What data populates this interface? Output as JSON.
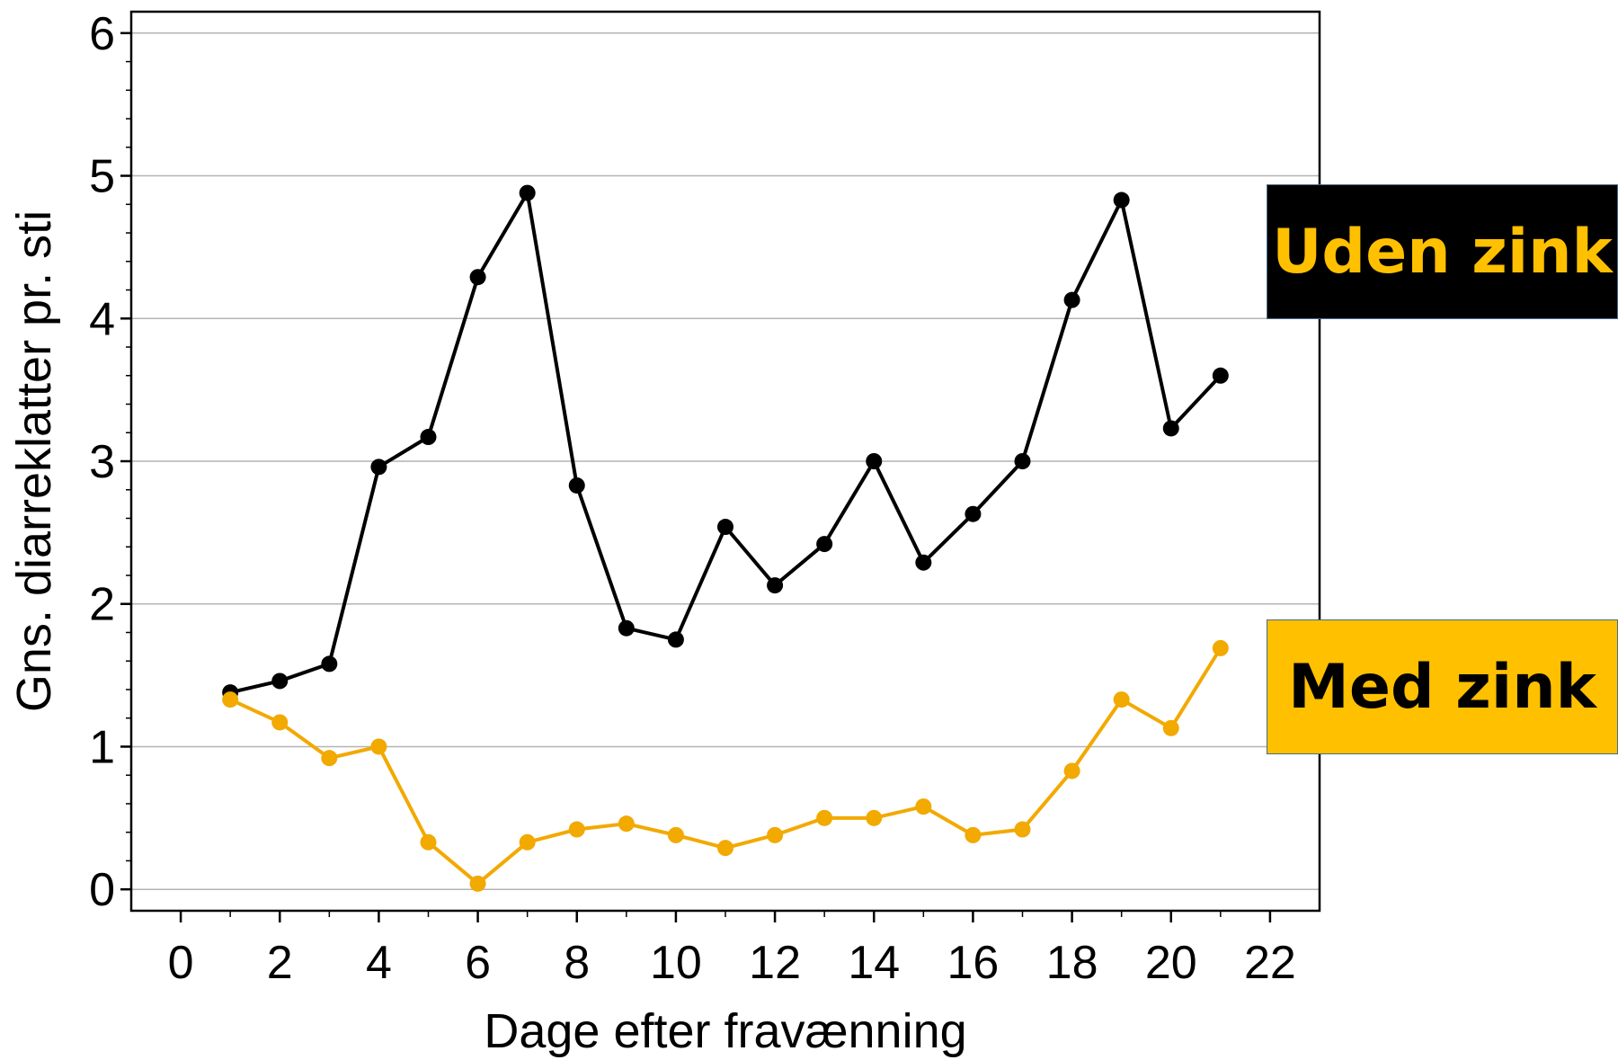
{
  "chart_data": {
    "type": "line",
    "title": "",
    "xlabel": "Dage efter fravænning",
    "ylabel": "Gns. diarreklatter pr. sti",
    "xlim": [
      -1,
      23
    ],
    "ylim": [
      -0.15,
      6.15
    ],
    "x_ticks": [
      "0",
      "2",
      "4",
      "6",
      "8",
      "10",
      "12",
      "14",
      "16",
      "18",
      "20",
      "22"
    ],
    "y_ticks": [
      "0",
      "1",
      "2",
      "3",
      "4",
      "5",
      "6"
    ],
    "grid": "horizontal",
    "legend_placement": "right",
    "x": [
      1,
      2,
      3,
      4,
      5,
      6,
      7,
      8,
      9,
      10,
      11,
      12,
      13,
      14,
      15,
      16,
      17,
      18,
      19,
      20,
      21
    ],
    "series": [
      {
        "name": "Uden zink",
        "color": "#000000",
        "label_color": "#FFC000",
        "label_bg": "#000000",
        "values": [
          1.38,
          1.46,
          1.58,
          2.96,
          3.17,
          4.29,
          4.88,
          2.83,
          1.83,
          1.75,
          2.54,
          2.13,
          2.42,
          3.0,
          2.29,
          2.63,
          3.0,
          4.13,
          4.83,
          3.23,
          3.6
        ]
      },
      {
        "name": "Med zink",
        "color": "#F2A900",
        "label_color": "#000000",
        "label_bg": "#FFC000",
        "values": [
          1.33,
          1.17,
          0.92,
          1.0,
          0.33,
          0.04,
          0.33,
          0.42,
          0.46,
          0.38,
          0.29,
          0.38,
          0.5,
          0.5,
          0.58,
          0.38,
          0.42,
          0.83,
          1.33,
          1.13,
          1.69
        ]
      }
    ]
  }
}
